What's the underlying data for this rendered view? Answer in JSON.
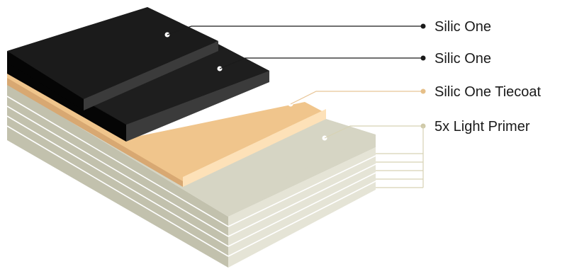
{
  "layers": [
    {
      "label": "Silic One",
      "color": "#1b1b1b",
      "leader": "#1a1a1a"
    },
    {
      "label": "Silic One",
      "color": "#1b1b1b",
      "leader": "#1a1a1a"
    },
    {
      "label": "Silic One Tiecoat",
      "color": "#f0c58c",
      "leader": "#e8c596"
    },
    {
      "label": "5x Light Primer",
      "color": "#d6d5c4",
      "leader": "#d7d2b4"
    }
  ]
}
